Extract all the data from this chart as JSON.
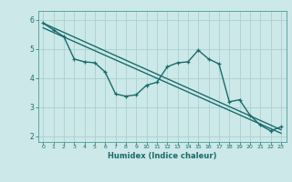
{
  "xlabel": "Humidex (Indice chaleur)",
  "background_color": "#cce8e8",
  "grid_color": "#aacfcf",
  "line_color": "#1a6b6b",
  "spine_color": "#4a9a9a",
  "xlim": [
    -0.5,
    23.5
  ],
  "ylim": [
    1.8,
    6.3
  ],
  "xticks": [
    0,
    1,
    2,
    3,
    4,
    5,
    6,
    7,
    8,
    9,
    10,
    11,
    12,
    13,
    14,
    15,
    16,
    17,
    18,
    19,
    20,
    21,
    22,
    23
  ],
  "yticks": [
    2,
    3,
    4,
    5,
    6
  ],
  "line1_x": [
    0,
    1,
    2,
    3,
    4,
    5,
    6,
    7,
    8,
    9,
    10,
    11,
    12,
    13,
    14,
    15,
    16,
    17,
    18,
    19,
    20,
    21,
    22,
    23
  ],
  "line1_y": [
    5.88,
    5.65,
    5.42,
    4.65,
    4.55,
    4.52,
    4.2,
    3.45,
    3.37,
    3.42,
    3.75,
    3.85,
    4.38,
    4.52,
    4.55,
    4.95,
    4.65,
    4.48,
    3.18,
    3.25,
    2.72,
    2.38,
    2.18,
    2.32
  ],
  "line2_x": [
    0,
    23
  ],
  "line2_y": [
    5.88,
    2.22
  ],
  "line3_x": [
    0,
    23
  ],
  "line3_y": [
    5.72,
    2.1
  ],
  "marker_size": 3.0,
  "line_width": 1.0
}
